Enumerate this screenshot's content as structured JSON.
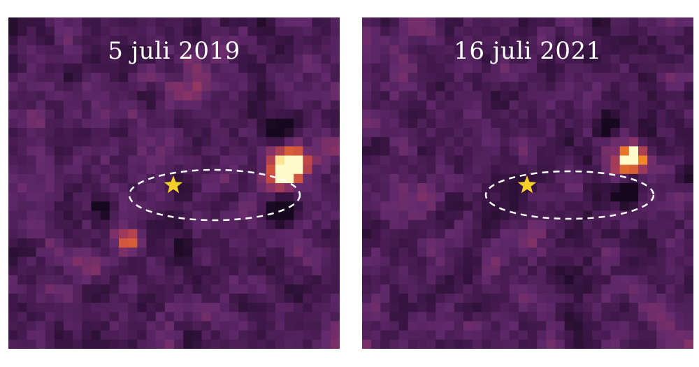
{
  "panels": [
    {
      "date_label": "5 juli 2019"
    },
    {
      "date_label": "16 juli 2021"
    }
  ],
  "colors": {
    "background": "#5e2b6a",
    "orbit_dash": "#ffffff",
    "star": "#f6d02a",
    "hot": "#fff6b0",
    "dark": "#1a0a20"
  },
  "icons": {
    "host_star": "star-icon"
  }
}
